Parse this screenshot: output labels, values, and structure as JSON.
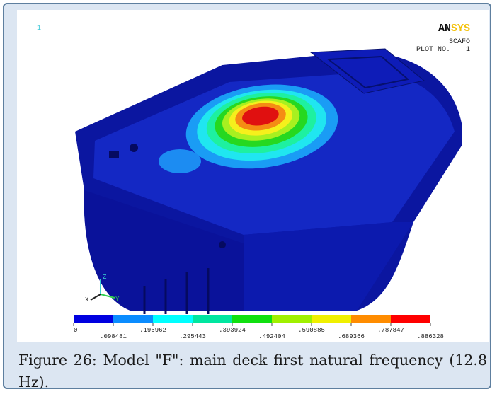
{
  "figure": {
    "corner_label": "1",
    "logo": {
      "an": "AN",
      "sys": "SYS"
    },
    "model_name": "SCAFO",
    "plot_label": "PLOT NO.",
    "plot_number": "1",
    "axis_labels": [
      "Z",
      "X",
      "Y"
    ],
    "legend": {
      "colors": [
        "#0000e0",
        "#0a8cff",
        "#00ffff",
        "#00e6a0",
        "#10e010",
        "#a0f000",
        "#f0f000",
        "#ff8c00",
        "#ff0000"
      ],
      "ticks": [
        0,
        {
          "value": 0.098481,
          "label": ".098481"
        },
        {
          "value": 0.196962,
          "label": ".196962"
        },
        {
          "value": 0.295443,
          "label": ".295443"
        },
        {
          "value": 0.393924,
          "label": ".393924"
        },
        {
          "value": 0.492404,
          "label": ".492404"
        },
        {
          "value": 0.590885,
          "label": ".590885"
        },
        {
          "value": 0.689366,
          "label": ".689366"
        },
        {
          "value": 0.787847,
          "label": ".787847"
        },
        {
          "value": 0.886328,
          "label": ".886328"
        }
      ]
    }
  },
  "caption": "Figure 26: Model \"F\": main deck first natural frequency (12.8 Hz)."
}
